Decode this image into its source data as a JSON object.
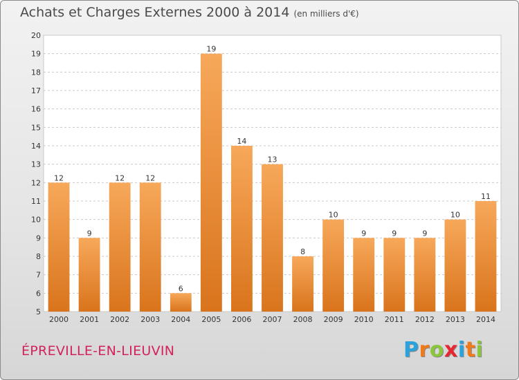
{
  "header": {
    "title": "Achats et Charges Externes 2000 à 2014",
    "unit": "(en milliers d'€)"
  },
  "footer": {
    "commune": "ÉPREVILLE-EN-LIEUVIN",
    "logo_letters": [
      "P",
      "r",
      "o",
      "x",
      "i",
      "t",
      "i"
    ],
    "logo_colors": [
      "#2aa3dc",
      "#f07a1a",
      "#8cc63f",
      "#e8262f",
      "#2aa3dc",
      "#f07a1a",
      "#8cc63f"
    ]
  },
  "colors": {
    "bar_light": "#f7a85a",
    "bar_dark": "#d9741c",
    "grid": "#c8c8c8",
    "axis_text": "#333333",
    "plot_bg": "#ffffff"
  },
  "chart_data": {
    "type": "bar",
    "title": "Achats et Charges Externes 2000 à 2014",
    "subtitle": "(en milliers d'€)",
    "xlabel": "",
    "ylabel": "",
    "categories": [
      "2000",
      "2001",
      "2002",
      "2003",
      "2004",
      "2005",
      "2006",
      "2007",
      "2008",
      "2009",
      "2010",
      "2011",
      "2012",
      "2013",
      "2014"
    ],
    "values": [
      12,
      9,
      12,
      12,
      6,
      19,
      14,
      13,
      8,
      10,
      9,
      9,
      9,
      10,
      11
    ],
    "data_labels": [
      "12",
      "9",
      "12",
      "12",
      "6",
      "19",
      "14",
      "13",
      "8",
      "10",
      "9",
      "9",
      "9",
      "10",
      "11"
    ],
    "ylim": [
      5,
      20
    ],
    "yticks": [
      "5",
      "6",
      "7",
      "8",
      "9",
      "10",
      "11",
      "12",
      "13",
      "14",
      "15",
      "16",
      "17",
      "18",
      "19",
      "20"
    ],
    "grid": true,
    "legend": "none"
  }
}
